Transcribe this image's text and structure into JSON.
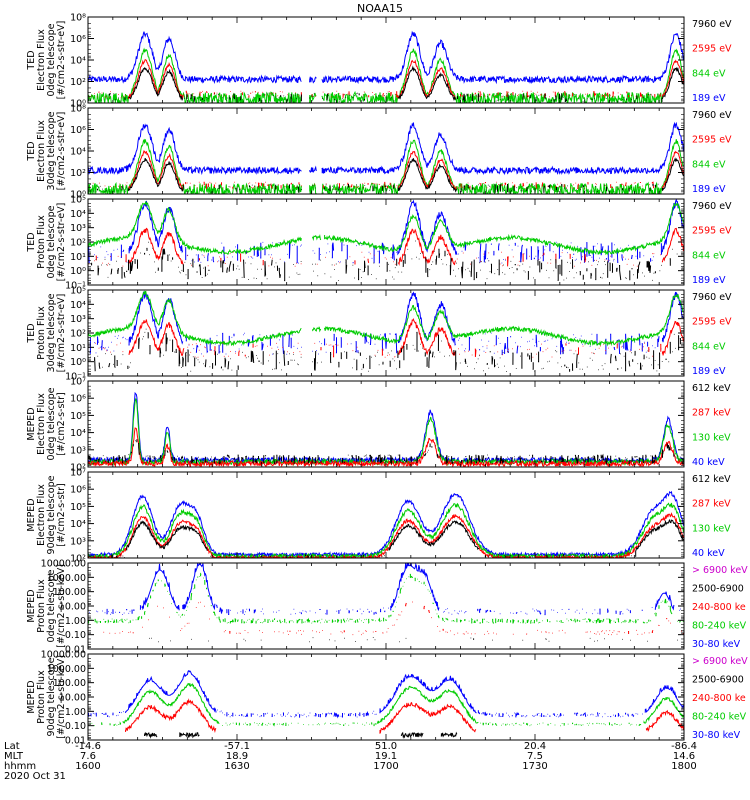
{
  "chart_data": {
    "type": "line",
    "title": "NOAA15",
    "date_label": "2020 Oct 31",
    "axis_rows": {
      "labels": [
        "Lat",
        "MLT",
        "hhmm"
      ],
      "ticks": [
        {
          "t": 0,
          "lat": "-14.6",
          "mlt": "7.6",
          "hhmm": "1600"
        },
        {
          "t": 30,
          "lat": "-57.1",
          "mlt": "18.9",
          "hhmm": "1630"
        },
        {
          "t": 60,
          "lat": "51.0",
          "mlt": "19.1",
          "hhmm": "1700"
        },
        {
          "t": 90,
          "lat": "20.4",
          "mlt": "7.5",
          "hhmm": "1730"
        },
        {
          "t": 120,
          "lat": "-86.4",
          "mlt": "14.6",
          "hhmm": "1800"
        }
      ]
    },
    "x_range_minutes": [
      0,
      120
    ],
    "active_intervals": [
      [
        9,
        22
      ],
      [
        63,
        79
      ],
      [
        114,
        120
      ]
    ],
    "panels": [
      {
        "ylabel": [
          "TED",
          "Electron Flux",
          "0deg telescope",
          "[#/cm2-s-str-eV]"
        ],
        "yticks": [
          "10⁸",
          "10⁶",
          "10⁴",
          "10²",
          "10⁰"
        ],
        "log": [
          0,
          8
        ],
        "kind": "ted_e",
        "legend": [
          {
            "text": "7960 eV",
            "color": "#000000"
          },
          {
            "text": "2595 eV",
            "color": "#ff0000"
          },
          {
            "text": "844 eV",
            "color": "#00cc00"
          },
          {
            "text": "189 eV",
            "color": "#0000ff"
          }
        ]
      },
      {
        "ylabel": [
          "TED",
          "Electron Flux",
          "30deg telescope",
          "[#/cm2-s-str-eV]"
        ],
        "yticks": [
          "10⁸",
          "10⁶",
          "10⁴",
          "10²",
          "10⁰"
        ],
        "log": [
          0,
          8
        ],
        "kind": "ted_e",
        "legend": [
          {
            "text": "7960 eV",
            "color": "#000000"
          },
          {
            "text": "2595 eV",
            "color": "#ff0000"
          },
          {
            "text": "844 eV",
            "color": "#00cc00"
          },
          {
            "text": "189 eV",
            "color": "#0000ff"
          }
        ]
      },
      {
        "ylabel": [
          "TED",
          "Proton Flux",
          "0deg telescope",
          "[#/cm2-s-str-eV]"
        ],
        "yticks": [
          "10⁵",
          "10⁴",
          "10³",
          "10²",
          "10¹",
          "10⁰",
          "10⁻¹"
        ],
        "log": [
          -1,
          5
        ],
        "kind": "ted_p",
        "legend": [
          {
            "text": "7960 eV",
            "color": "#000000"
          },
          {
            "text": "2595 eV",
            "color": "#ff0000"
          },
          {
            "text": "844 eV",
            "color": "#00cc00"
          },
          {
            "text": "189 eV",
            "color": "#0000ff"
          }
        ]
      },
      {
        "ylabel": [
          "TED",
          "Proton Flux",
          "30deg telescope",
          "[#/cm2-s-str-eV]"
        ],
        "yticks": [
          "10⁵",
          "10⁴",
          "10³",
          "10²",
          "10¹",
          "10⁰",
          "10⁻¹"
        ],
        "log": [
          -1,
          5
        ],
        "kind": "ted_p",
        "legend": [
          {
            "text": "7960 eV",
            "color": "#000000"
          },
          {
            "text": "2595 eV",
            "color": "#ff0000"
          },
          {
            "text": "844 eV",
            "color": "#00cc00"
          },
          {
            "text": "189 eV",
            "color": "#0000ff"
          }
        ]
      },
      {
        "ylabel": [
          "MEPED",
          "Electron Flux",
          "0deg telescope",
          "[#/cm2-s-str]"
        ],
        "yticks": [
          "10⁷",
          "10⁶",
          "10⁵",
          "10⁴",
          "10³",
          "10²"
        ],
        "log": [
          2,
          7
        ],
        "kind": "meped_e0",
        "legend": [
          {
            "text": "612 keV",
            "color": "#000000"
          },
          {
            "text": "287 keV",
            "color": "#ff0000"
          },
          {
            "text": "130 keV",
            "color": "#00cc00"
          },
          {
            "text": "40 keV",
            "color": "#0000ff"
          }
        ]
      },
      {
        "ylabel": [
          "MEPED",
          "Electron Flux",
          "90deg telescope",
          "[#/cm2-s-str]"
        ],
        "yticks": [
          "10⁷",
          "10⁶",
          "10⁵",
          "10⁴",
          "10³",
          "10²"
        ],
        "log": [
          2,
          7
        ],
        "kind": "meped_e90",
        "legend": [
          {
            "text": "612 keV",
            "color": "#000000"
          },
          {
            "text": "287 keV",
            "color": "#ff0000"
          },
          {
            "text": "130 keV",
            "color": "#00cc00"
          },
          {
            "text": "40 keV",
            "color": "#0000ff"
          }
        ]
      },
      {
        "ylabel": [
          "MEPED",
          "Proton Flux",
          "0deg telescope",
          "[#/cm2-s-str-keV]"
        ],
        "yticks": [
          "10000.00",
          "1000.00",
          "100.00",
          "10.00",
          "1.00",
          "0.10",
          "0.01"
        ],
        "log": [
          -2,
          4
        ],
        "kind": "meped_p0",
        "legend": [
          {
            "text": "> 6900 keV",
            "color": "#cc00cc"
          },
          {
            "text": "2500-6900",
            "color": "#000000"
          },
          {
            "text": "240-800 ke",
            "color": "#ff0000"
          },
          {
            "text": "80-240 keV",
            "color": "#00cc00"
          },
          {
            "text": "30-80 keV",
            "color": "#0000ff"
          }
        ]
      },
      {
        "ylabel": [
          "MEPED",
          "Proton Flux",
          "90deg telescope",
          "[#/cm2-s-str-keV]"
        ],
        "yticks": [
          "10000.00",
          "1000.00",
          "100.00",
          "10.00",
          "1.00",
          "0.10",
          "0.01"
        ],
        "log": [
          -2,
          4
        ],
        "kind": "meped_p90",
        "legend": [
          {
            "text": "> 6900 keV",
            "color": "#cc00cc"
          },
          {
            "text": "2500-6900",
            "color": "#000000"
          },
          {
            "text": "240-800 ke",
            "color": "#ff0000"
          },
          {
            "text": "80-240 keV",
            "color": "#00cc00"
          },
          {
            "text": "30-80 keV",
            "color": "#0000ff"
          }
        ]
      }
    ]
  }
}
